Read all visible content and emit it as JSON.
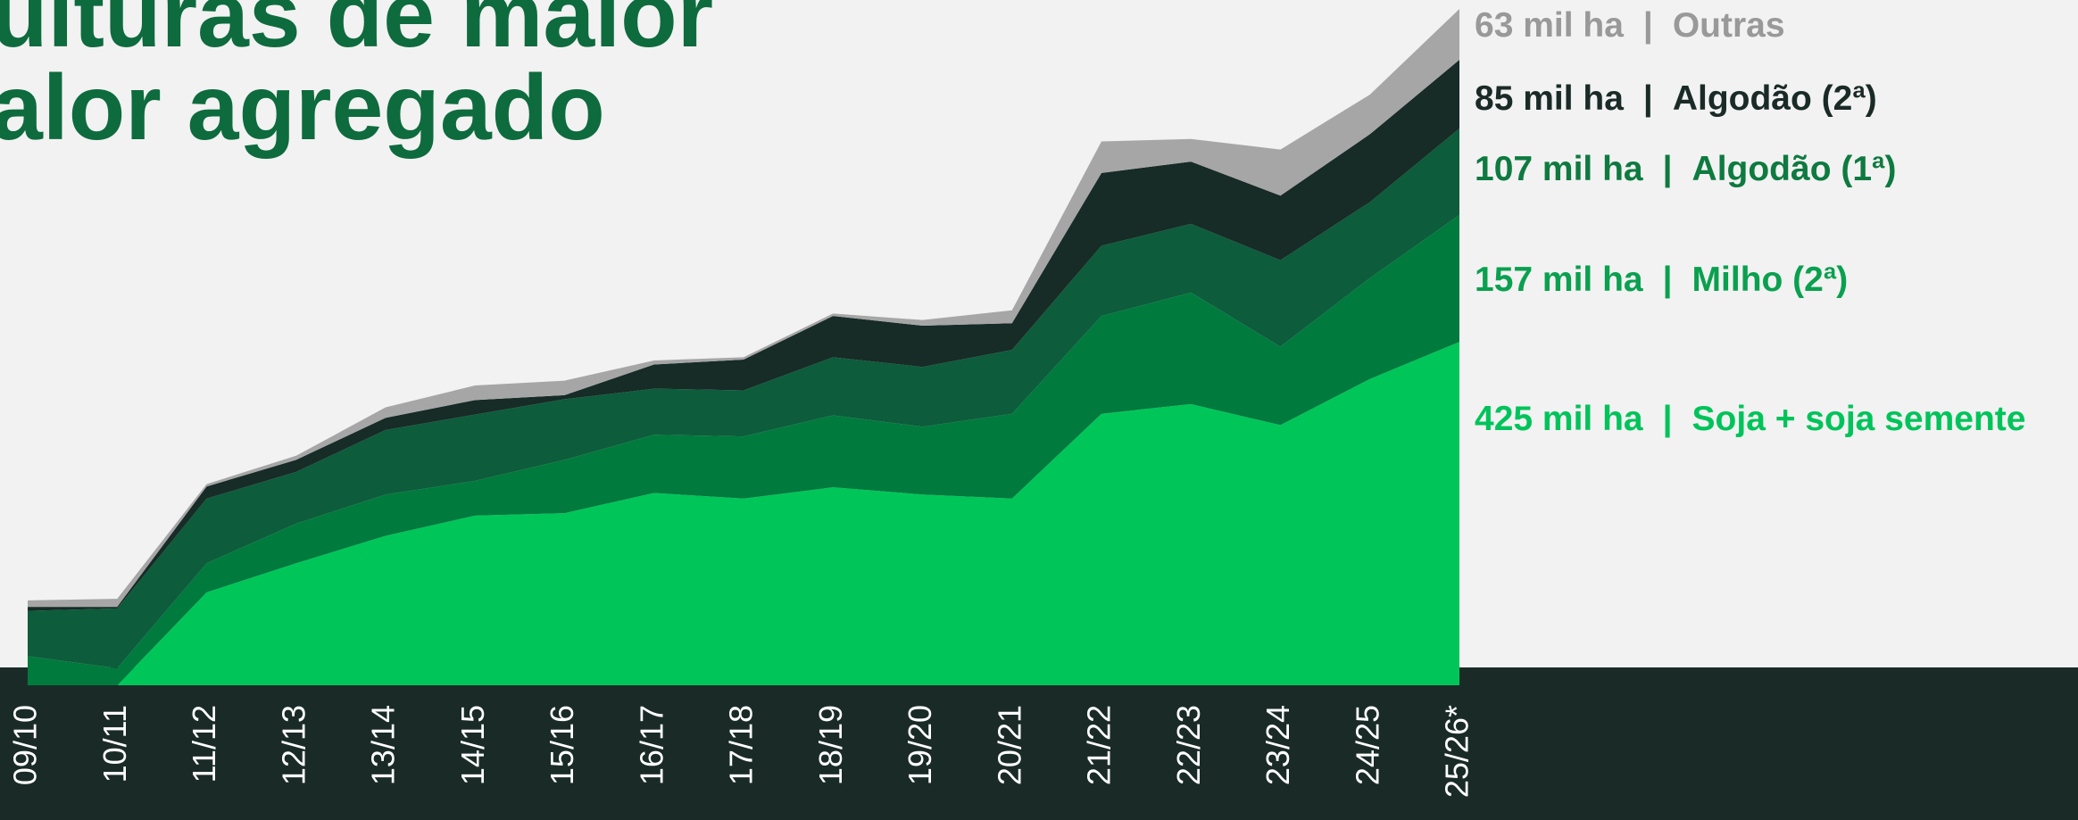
{
  "chart_data": {
    "type": "stacked_area",
    "title": [
      "ulturas de maior",
      "alor agregado"
    ],
    "separator": "|",
    "categories": [
      "09/10",
      "10/11",
      "11/12",
      "12/13",
      "13/14",
      "14/15",
      "15/16",
      "16/17",
      "17/18",
      "18/19",
      "19/20",
      "20/21",
      "21/22",
      "22/23",
      "23/24",
      "24/25",
      "25/26*"
    ],
    "series": [
      {
        "name": "Soja + soja semente",
        "color": "#00c65a",
        "label_color": "#00c35a",
        "values": [
          0,
          0,
          115,
          151,
          185,
          210,
          213,
          238,
          231,
          245,
          236,
          231,
          336,
          348,
          322,
          379,
          425
        ],
        "value_labels": [
          null,
          null,
          null,
          null,
          null,
          null,
          null,
          null,
          null,
          null,
          null,
          null,
          null,
          null,
          null,
          null,
          "425 mil ha"
        ]
      },
      {
        "name": "Milho (2ª)",
        "color": "#007a3d",
        "label_color": "#0aa04f",
        "values": [
          36,
          21,
          36,
          49,
          51,
          43,
          66,
          72,
          77,
          89,
          84,
          105,
          121,
          138,
          97,
          125,
          157
        ],
        "value_labels": [
          null,
          null,
          null,
          null,
          null,
          null,
          null,
          null,
          null,
          null,
          null,
          null,
          null,
          null,
          null,
          null,
          "157 mil ha"
        ]
      },
      {
        "name": "Algodão (1ª)",
        "color": "#0d5c3c",
        "label_color": "#0e7a40",
        "values": [
          56,
          74,
          80,
          64,
          80,
          82,
          75,
          57,
          57,
          72,
          74,
          79,
          87,
          85,
          107,
          94,
          107
        ],
        "value_labels": [
          null,
          null,
          null,
          null,
          null,
          null,
          null,
          null,
          null,
          null,
          null,
          null,
          null,
          null,
          null,
          null,
          "107 mil ha"
        ]
      },
      {
        "name": "Algodão (2ª)",
        "color": "#172b27",
        "label_color": "#1a2b27",
        "values": [
          5,
          2,
          15,
          15,
          15,
          18,
          5,
          30,
          38,
          51,
          51,
          33,
          90,
          77,
          80,
          84,
          85
        ],
        "value_labels": [
          null,
          null,
          null,
          null,
          null,
          null,
          null,
          null,
          null,
          null,
          null,
          null,
          null,
          null,
          null,
          null,
          "85 mil ha"
        ]
      },
      {
        "name": "Outras",
        "color": "#a6a6a6",
        "label_color": "#999999",
        "values": [
          8,
          10,
          3,
          5,
          13,
          18,
          18,
          5,
          3,
          3,
          7,
          16,
          39,
          28,
          57,
          49,
          63
        ],
        "value_labels": [
          null,
          null,
          null,
          null,
          null,
          null,
          null,
          null,
          null,
          null,
          null,
          null,
          null,
          null,
          null,
          null,
          "63 mil ha"
        ]
      }
    ]
  }
}
